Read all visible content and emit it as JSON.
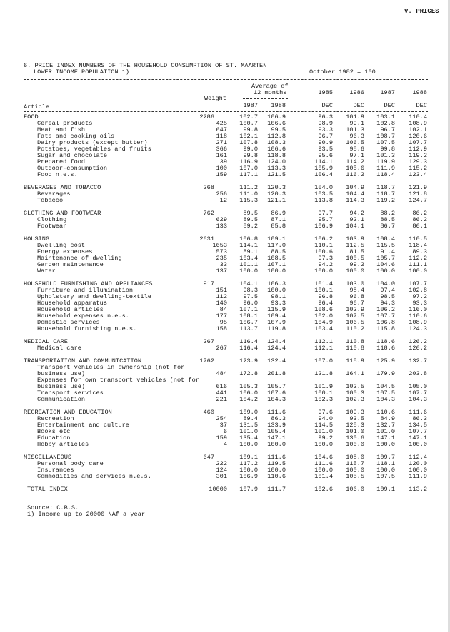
{
  "page_header": "V. PRICES",
  "title_line1": "6. PRICE INDEX NUMBERS OF THE HOUSEHOLD CONSUMPTION OF ST. MAARTEN",
  "title_line2": "LOWER INCOME POPULATION 1)",
  "base": "October 1982 = 100",
  "columns": {
    "article": "Article",
    "weight": "Weight",
    "avg_line1": "Average of",
    "avg_line2": "12 months",
    "avg_years": [
      "1987",
      "1988"
    ],
    "dec_years": [
      "1985",
      "1986",
      "1987",
      "1988"
    ],
    "dec_label": "DEC"
  },
  "sections": [
    {
      "label": "FOOD",
      "weight": "2286",
      "values": [
        "102.7",
        "106.9",
        "96.3",
        "101.9",
        "103.1",
        "110.4"
      ],
      "items": [
        {
          "label": [
            "Cereal products"
          ],
          "weight": "425",
          "values": [
            "100.7",
            "106.6",
            "98.9",
            "99.1",
            "102.8",
            "108.9"
          ]
        },
        {
          "label": [
            "Meat and fish"
          ],
          "weight": "647",
          "values": [
            "99.8",
            "99.5",
            "93.3",
            "101.3",
            "96.7",
            "102.1"
          ]
        },
        {
          "label": [
            "Fats and cooking oils"
          ],
          "weight": "118",
          "values": [
            "102.1",
            "112.8",
            "96.7",
            "96.3",
            "108.7",
            "120.6"
          ]
        },
        {
          "label": [
            "Dairy products (except butter)"
          ],
          "weight": "271",
          "values": [
            "107.8",
            "108.3",
            "90.9",
            "106.5",
            "107.5",
            "107.7"
          ]
        },
        {
          "label": [
            "Potatoes, vegetables and fruits"
          ],
          "weight": "366",
          "values": [
            "99.0",
            "106.6",
            "93.5",
            "98.6",
            "99.8",
            "112.9"
          ]
        },
        {
          "label": [
            "Sugar and chocolate"
          ],
          "weight": "161",
          "values": [
            "99.8",
            "118.8",
            "95.6",
            "97.1",
            "101.3",
            "119.2"
          ]
        },
        {
          "label": [
            "Prepared food"
          ],
          "weight": "39",
          "values": [
            "116.9",
            "124.0",
            "114.1",
            "114.2",
            "119.9",
            "129.3"
          ]
        },
        {
          "label": [
            "Outdoor-consumption"
          ],
          "weight": "100",
          "values": [
            "107.0",
            "113.3",
            "105.9",
            "105.6",
            "111.9",
            "115.2"
          ]
        },
        {
          "label": [
            "Food n.e.s."
          ],
          "weight": "159",
          "values": [
            "117.1",
            "121.5",
            "106.4",
            "116.2",
            "118.4",
            "123.4"
          ]
        }
      ]
    },
    {
      "label": "BEVERAGES AND TOBACCO",
      "weight": "268",
      "values": [
        "111.2",
        "120.3",
        "104.0",
        "104.9",
        "118.7",
        "121.9"
      ],
      "items": [
        {
          "label": [
            "Beverages"
          ],
          "weight": "256",
          "values": [
            "111.0",
            "120.3",
            "103.5",
            "104.4",
            "118.7",
            "121.8"
          ]
        },
        {
          "label": [
            "Tobacco"
          ],
          "weight": "12",
          "values": [
            "115.3",
            "121.1",
            "113.8",
            "114.3",
            "119.2",
            "124.7"
          ]
        }
      ]
    },
    {
      "label": "CLOTHING AND FOOTWEAR",
      "weight": "762",
      "values": [
        "89.5",
        "86.9",
        "97.7",
        "94.2",
        "88.2",
        "86.2"
      ],
      "items": [
        {
          "label": [
            "Clothing"
          ],
          "weight": "629",
          "values": [
            "89.5",
            "87.1",
            "95.7",
            "92.1",
            "88.5",
            "86.2"
          ]
        },
        {
          "label": [
            "Footwear"
          ],
          "weight": "133",
          "values": [
            "89.2",
            "85.8",
            "106.9",
            "104.1",
            "86.7",
            "86.1"
          ]
        }
      ]
    },
    {
      "label": "HOUSING",
      "weight": "2631",
      "values": [
        "106.8",
        "109.1",
        "106.2",
        "103.9",
        "108.4",
        "110.5"
      ],
      "items": [
        {
          "label": [
            "Dwelling cost"
          ],
          "weight": "1653",
          "values": [
            "114.1",
            "117.0",
            "110.1",
            "112.5",
            "115.5",
            "118.4"
          ]
        },
        {
          "label": [
            "Energy expenses"
          ],
          "weight": "573",
          "values": [
            "89.1",
            "88.5",
            "100.6",
            "81.5",
            "91.4",
            "89.3"
          ]
        },
        {
          "label": [
            "Maintenance of dwelling"
          ],
          "weight": "235",
          "values": [
            "103.4",
            "108.5",
            "97.3",
            "100.5",
            "105.7",
            "112.2"
          ]
        },
        {
          "label": [
            "Garden maintenance"
          ],
          "weight": "33",
          "values": [
            "101.1",
            "107.1",
            "94.2",
            "99.2",
            "104.6",
            "111.1"
          ]
        },
        {
          "label": [
            "Water"
          ],
          "weight": "137",
          "values": [
            "100.0",
            "100.0",
            "100.0",
            "100.0",
            "100.0",
            "100.0"
          ]
        }
      ]
    },
    {
      "label": "HOUSEHOLD FURNISHING AND APPLIANCES",
      "weight": "917",
      "values": [
        "104.1",
        "106.3",
        "101.4",
        "103.0",
        "104.0",
        "107.7"
      ],
      "items": [
        {
          "label": [
            "Furniture and illumination"
          ],
          "weight": "151",
          "values": [
            "98.3",
            "100.0",
            "100.1",
            "98.4",
            "97.4",
            "102.8"
          ]
        },
        {
          "label": [
            "Upholstery and dwelling-textile"
          ],
          "weight": "112",
          "values": [
            "97.5",
            "98.1",
            "96.8",
            "96.8",
            "98.5",
            "97.2"
          ]
        },
        {
          "label": [
            "Household apparatus"
          ],
          "weight": "140",
          "values": [
            "96.0",
            "93.3",
            "96.4",
            "96.7",
            "94.3",
            "93.3"
          ]
        },
        {
          "label": [
            "Household articles"
          ],
          "weight": "84",
          "values": [
            "107.1",
            "115.9",
            "108.6",
            "102.9",
            "106.2",
            "116.0"
          ]
        },
        {
          "label": [
            "Household expenses n.e.s."
          ],
          "weight": "177",
          "values": [
            "108.1",
            "109.4",
            "102.0",
            "107.5",
            "107.7",
            "110.6"
          ]
        },
        {
          "label": [
            "Domestic services"
          ],
          "weight": "95",
          "values": [
            "106.7",
            "107.9",
            "104.9",
            "106.5",
            "106.8",
            "108.9"
          ]
        },
        {
          "label": [
            "Household furnishing n.e.s."
          ],
          "weight": "158",
          "values": [
            "113.7",
            "119.8",
            "103.4",
            "110.2",
            "115.8",
            "124.3"
          ]
        }
      ]
    },
    {
      "label": "MEDICAL CARE",
      "weight": "267",
      "values": [
        "116.4",
        "124.4",
        "112.1",
        "110.8",
        "118.6",
        "126.2"
      ],
      "items": [
        {
          "label": [
            "Medical care"
          ],
          "weight": "267",
          "values": [
            "116.4",
            "124.4",
            "112.1",
            "110.8",
            "118.6",
            "126.2"
          ]
        }
      ]
    },
    {
      "label": "TRANSPORTATION AND COMMUNICATION",
      "weight": "1762",
      "values": [
        "123.9",
        "132.4",
        "107.0",
        "118.9",
        "125.9",
        "132.7"
      ],
      "items": [
        {
          "label": [
            "Transport vehicles in ownership (not for",
            "business use)"
          ],
          "weight": "484",
          "values": [
            "172.8",
            "201.8",
            "121.8",
            "164.1",
            "179.9",
            "203.8"
          ]
        },
        {
          "label": [
            "Expenses for own transport vehicles (not for",
            "business use)"
          ],
          "weight": "616",
          "values": [
            "105.3",
            "105.7",
            "101.9",
            "102.5",
            "104.5",
            "105.0"
          ]
        },
        {
          "label": [
            "Transport services"
          ],
          "weight": "441",
          "values": [
            "106.0",
            "107.6",
            "100.1",
            "100.3",
            "107.5",
            "107.7"
          ]
        },
        {
          "label": [
            "Communication"
          ],
          "weight": "221",
          "values": [
            "104.2",
            "104.3",
            "102.3",
            "102.3",
            "104.3",
            "104.3"
          ]
        }
      ]
    },
    {
      "label": "RECREATION AND EDUCATION",
      "weight": "460",
      "values": [
        "109.0",
        "111.6",
        "97.6",
        "109.3",
        "110.6",
        "111.6"
      ],
      "items": [
        {
          "label": [
            "Recreation"
          ],
          "weight": "254",
          "values": [
            "89.4",
            "86.3",
            "94.0",
            "93.5",
            "84.9",
            "86.3"
          ]
        },
        {
          "label": [
            "Entertainment and culture"
          ],
          "weight": "37",
          "values": [
            "131.5",
            "133.9",
            "114.5",
            "128.3",
            "132.7",
            "134.5"
          ]
        },
        {
          "label": [
            "Books etc"
          ],
          "weight": "6",
          "values": [
            "101.0",
            "105.4",
            "101.0",
            "101.0",
            "101.0",
            "107.7"
          ]
        },
        {
          "label": [
            "Education"
          ],
          "weight": "159",
          "values": [
            "135.4",
            "147.1",
            "99.2",
            "130.6",
            "147.1",
            "147.1"
          ]
        },
        {
          "label": [
            "Hobby articles"
          ],
          "weight": "4",
          "values": [
            "100.0",
            "100.0",
            "100.0",
            "100.0",
            "100.0",
            "100.0"
          ]
        }
      ]
    },
    {
      "label": "MISCELLANEOUS",
      "weight": "647",
      "values": [
        "109.1",
        "111.6",
        "104.6",
        "108.0",
        "109.7",
        "112.4"
      ],
      "items": [
        {
          "label": [
            "Personal body care"
          ],
          "weight": "222",
          "values": [
            "117.2",
            "119.5",
            "111.6",
            "115.7",
            "118.1",
            "120.0"
          ]
        },
        {
          "label": [
            "Insurances"
          ],
          "weight": "124",
          "values": [
            "100.0",
            "100.0",
            "100.0",
            "100.0",
            "100.0",
            "100.0"
          ]
        },
        {
          "label": [
            "Commodities and services n.e.s."
          ],
          "weight": "301",
          "values": [
            "106.9",
            "110.6",
            "101.4",
            "105.5",
            "107.5",
            "111.9"
          ]
        }
      ]
    }
  ],
  "total": {
    "label": "TOTAL INDEX",
    "weight": "10000",
    "values": [
      "107.9",
      "111.7",
      "102.6",
      "106.0",
      "109.1",
      "113.2"
    ]
  },
  "source": "Source: C.B.S.",
  "footnote": "1) Income up to 20000 NAf a year"
}
